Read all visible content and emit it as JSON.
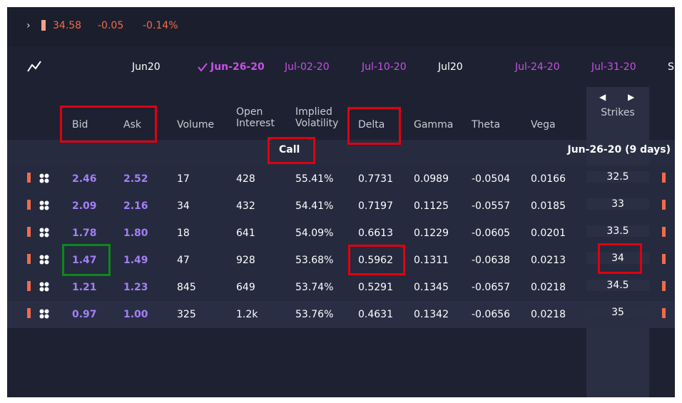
{
  "quote": {
    "price": "34.58",
    "change": "-0.05",
    "percent": "-0.14%"
  },
  "expiries": [
    {
      "label": "Jun20",
      "kind": "month"
    },
    {
      "label": "Jun-26-20",
      "kind": "selected"
    },
    {
      "label": "Jul-02-20",
      "kind": "week"
    },
    {
      "label": "Jul-10-20",
      "kind": "week"
    },
    {
      "label": "Jul20",
      "kind": "month"
    },
    {
      "label": "Jul-24-20",
      "kind": "week"
    },
    {
      "label": "Jul-31-20",
      "kind": "week"
    },
    {
      "label": "S",
      "kind": "month"
    }
  ],
  "columns": [
    "Bid",
    "Ask",
    "Volume",
    "Open Interest",
    "Implied Volatility",
    "Delta",
    "Gamma",
    "Theta",
    "Vega"
  ],
  "strikes_header": "Strikes",
  "side_label": "Call",
  "expiry_label": "Jun-26-20 (9 days)",
  "rows": [
    [
      "2.46",
      "2.52",
      "17",
      "428",
      "55.41%",
      "0.7731",
      "0.0989",
      "-0.0504",
      "0.0166",
      "32.5"
    ],
    [
      "2.09",
      "2.16",
      "34",
      "432",
      "54.41%",
      "0.7197",
      "0.1125",
      "-0.0557",
      "0.0185",
      "33"
    ],
    [
      "1.78",
      "1.80",
      "18",
      "641",
      "54.09%",
      "0.6613",
      "0.1229",
      "-0.0605",
      "0.0201",
      "33.5"
    ],
    [
      "1.47",
      "1.49",
      "47",
      "928",
      "53.68%",
      "0.5962",
      "0.1311",
      "-0.0638",
      "0.0213",
      "34"
    ],
    [
      "1.21",
      "1.23",
      "845",
      "649",
      "53.74%",
      "0.5291",
      "0.1345",
      "-0.0657",
      "0.0218",
      "34.5"
    ],
    [
      "0.97",
      "1.00",
      "325",
      "1.2k",
      "53.76%",
      "0.4631",
      "0.1342",
      "-0.0656",
      "0.0218",
      "35"
    ]
  ]
}
